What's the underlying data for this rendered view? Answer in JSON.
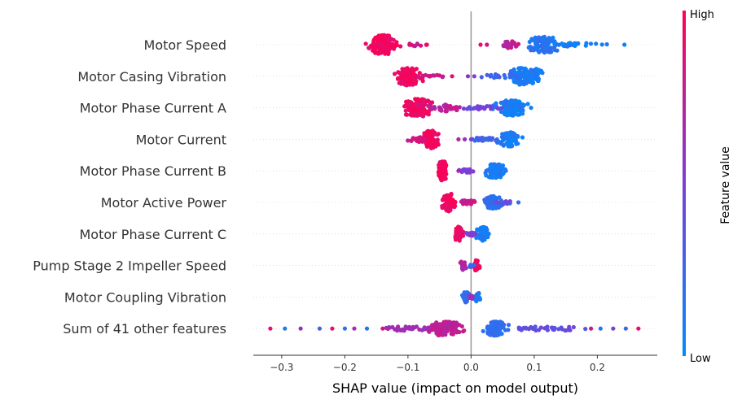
{
  "chart_data": {
    "type": "scatter",
    "subtype": "shap-beeswarm",
    "xlabel": "SHAP value (impact on model output)",
    "xlim": [
      -0.345,
      0.295
    ],
    "xticks": [
      {
        "value": -0.3,
        "label": "−0.3"
      },
      {
        "value": -0.2,
        "label": "−0.2"
      },
      {
        "value": -0.1,
        "label": "−0.1"
      },
      {
        "value": 0.0,
        "label": "0.0"
      },
      {
        "value": 0.1,
        "label": "0.1"
      },
      {
        "value": 0.2,
        "label": "0.2"
      }
    ],
    "colorbar": {
      "title": "Feature value",
      "high_label": "High",
      "low_label": "Low",
      "high_color": "#ff0052",
      "low_color": "#008bfb"
    },
    "features": [
      {
        "name": "Motor Speed",
        "clusters": [
          {
            "center": -0.14,
            "spread": 0.018,
            "density": 5.5,
            "value": 0.95,
            "count": 130
          },
          {
            "center": 0.115,
            "spread": 0.02,
            "density": 4.5,
            "value": 0.15,
            "count": 110
          },
          {
            "center": 0.16,
            "spread": 0.04,
            "density": 1.0,
            "value": 0.08,
            "count": 30
          },
          {
            "center": 0.06,
            "spread": 0.012,
            "density": 2.0,
            "value": 0.75,
            "count": 20
          },
          {
            "center": -0.09,
            "spread": 0.02,
            "density": 0.8,
            "value": 0.8,
            "count": 10
          }
        ],
        "outliers": [
          {
            "x": 0.243,
            "value": 0.05
          },
          {
            "x": 0.015,
            "value": 0.9
          },
          {
            "x": 0.025,
            "value": 0.85
          },
          {
            "x": -0.07,
            "value": 0.95
          }
        ]
      },
      {
        "name": "Motor Casing Vibration",
        "clusters": [
          {
            "center": -0.1,
            "spread": 0.016,
            "density": 5.0,
            "value": 0.95,
            "count": 110
          },
          {
            "center": 0.087,
            "spread": 0.018,
            "density": 5.0,
            "value": 0.1,
            "count": 110
          },
          {
            "center": 0.05,
            "spread": 0.025,
            "density": 1.2,
            "value": 0.25,
            "count": 20
          },
          {
            "center": -0.06,
            "spread": 0.02,
            "density": 0.8,
            "value": 0.8,
            "count": 12
          }
        ],
        "outliers": [
          {
            "x": -0.005,
            "value": 0.6
          },
          {
            "x": 0.005,
            "value": 0.5
          },
          {
            "x": -0.03,
            "value": 0.85
          },
          {
            "x": 0.1,
            "value": 0.15
          }
        ]
      },
      {
        "name": "Motor Phase Current A",
        "clusters": [
          {
            "center": -0.084,
            "spread": 0.018,
            "density": 5.0,
            "value": 0.93,
            "count": 120
          },
          {
            "center": 0.065,
            "spread": 0.02,
            "density": 4.5,
            "value": 0.1,
            "count": 120
          },
          {
            "center": -0.04,
            "spread": 0.02,
            "density": 2.0,
            "value": 0.75,
            "count": 30
          },
          {
            "center": 0.02,
            "spread": 0.025,
            "density": 1.0,
            "value": 0.45,
            "count": 25
          }
        ],
        "outliers": [
          {
            "x": 0.095,
            "value": 0.1
          }
        ]
      },
      {
        "name": "Motor Current",
        "clusters": [
          {
            "center": -0.064,
            "spread": 0.01,
            "density": 5.0,
            "value": 0.95,
            "count": 90
          },
          {
            "center": 0.06,
            "spread": 0.012,
            "density": 4.0,
            "value": 0.1,
            "count": 85
          },
          {
            "center": -0.085,
            "spread": 0.012,
            "density": 1.5,
            "value": 0.85,
            "count": 20
          },
          {
            "center": 0.025,
            "spread": 0.018,
            "density": 1.0,
            "value": 0.25,
            "count": 20
          }
        ],
        "outliers": [
          {
            "x": -0.02,
            "value": 0.7
          },
          {
            "x": 0.0,
            "value": 0.5
          },
          {
            "x": -0.01,
            "value": 0.6
          }
        ]
      },
      {
        "name": "Motor Phase Current B",
        "clusters": [
          {
            "center": -0.045,
            "spread": 0.006,
            "density": 5.5,
            "value": 0.95,
            "count": 80
          },
          {
            "center": 0.038,
            "spread": 0.012,
            "density": 4.0,
            "value": 0.1,
            "count": 85
          },
          {
            "center": -0.005,
            "spread": 0.012,
            "density": 1.0,
            "value": 0.5,
            "count": 25
          }
        ],
        "outliers": [
          {
            "x": -0.02,
            "value": 0.7
          },
          {
            "x": 0.055,
            "value": 0.15
          }
        ]
      },
      {
        "name": "Motor Active Power",
        "clusters": [
          {
            "center": -0.035,
            "spread": 0.008,
            "density": 5.0,
            "value": 0.95,
            "count": 70
          },
          {
            "center": 0.035,
            "spread": 0.012,
            "density": 3.5,
            "value": 0.2,
            "count": 70
          },
          {
            "center": -0.005,
            "spread": 0.012,
            "density": 1.2,
            "value": 0.8,
            "count": 30
          },
          {
            "center": 0.055,
            "spread": 0.012,
            "density": 1.0,
            "value": 0.4,
            "count": 15
          }
        ],
        "outliers": [
          {
            "x": 0.075,
            "value": 0.2
          }
        ]
      },
      {
        "name": "Motor Phase Current C",
        "clusters": [
          {
            "center": -0.02,
            "spread": 0.006,
            "density": 4.0,
            "value": 0.93,
            "count": 55
          },
          {
            "center": 0.018,
            "spread": 0.007,
            "density": 4.0,
            "value": 0.1,
            "count": 60
          },
          {
            "center": 0.0,
            "spread": 0.008,
            "density": 1.0,
            "value": 0.5,
            "count": 15
          }
        ],
        "outliers": [
          {
            "x": 0.028,
            "value": 0.1
          }
        ]
      },
      {
        "name": "Pump Stage 2 Impeller Speed",
        "clusters": [
          {
            "center": 0.008,
            "spread": 0.004,
            "density": 3.0,
            "value": 0.95,
            "count": 30
          },
          {
            "center": -0.012,
            "spread": 0.004,
            "density": 2.5,
            "value": 0.7,
            "count": 25
          },
          {
            "center": 0.0,
            "spread": 0.004,
            "density": 1.0,
            "value": 0.3,
            "count": 8
          }
        ],
        "outliers": []
      },
      {
        "name": "Motor Coupling Vibration",
        "clusters": [
          {
            "center": -0.008,
            "spread": 0.004,
            "density": 3.0,
            "value": 0.2,
            "count": 35
          },
          {
            "center": 0.01,
            "spread": 0.004,
            "density": 2.5,
            "value": 0.1,
            "count": 25
          },
          {
            "center": 0.0,
            "spread": 0.004,
            "density": 1.0,
            "value": 0.6,
            "count": 8
          }
        ],
        "outliers": []
      },
      {
        "name": "Sum of 41 other features",
        "clusters": [
          {
            "center": -0.04,
            "spread": 0.02,
            "density": 4.0,
            "value": 0.75,
            "count": 110
          },
          {
            "center": 0.04,
            "spread": 0.015,
            "density": 4.0,
            "value": 0.2,
            "count": 90
          },
          {
            "center": 0.12,
            "spread": 0.05,
            "density": 1.2,
            "value": 0.4,
            "count": 40
          },
          {
            "center": -0.1,
            "spread": 0.03,
            "density": 1.2,
            "value": 0.65,
            "count": 35
          }
        ],
        "outliers": [
          {
            "x": -0.318,
            "value": 0.9
          },
          {
            "x": -0.295,
            "value": 0.1
          },
          {
            "x": -0.27,
            "value": 0.6
          },
          {
            "x": -0.24,
            "value": 0.3
          },
          {
            "x": -0.2,
            "value": 0.2
          },
          {
            "x": -0.185,
            "value": 0.65
          },
          {
            "x": -0.165,
            "value": 0.15
          },
          {
            "x": -0.14,
            "value": 0.85
          },
          {
            "x": 0.205,
            "value": 0.15
          },
          {
            "x": 0.225,
            "value": 0.5
          },
          {
            "x": 0.245,
            "value": 0.25
          },
          {
            "x": 0.265,
            "value": 0.9
          },
          {
            "x": 0.19,
            "value": 0.8
          },
          {
            "x": -0.22,
            "value": 0.9
          }
        ]
      }
    ]
  }
}
